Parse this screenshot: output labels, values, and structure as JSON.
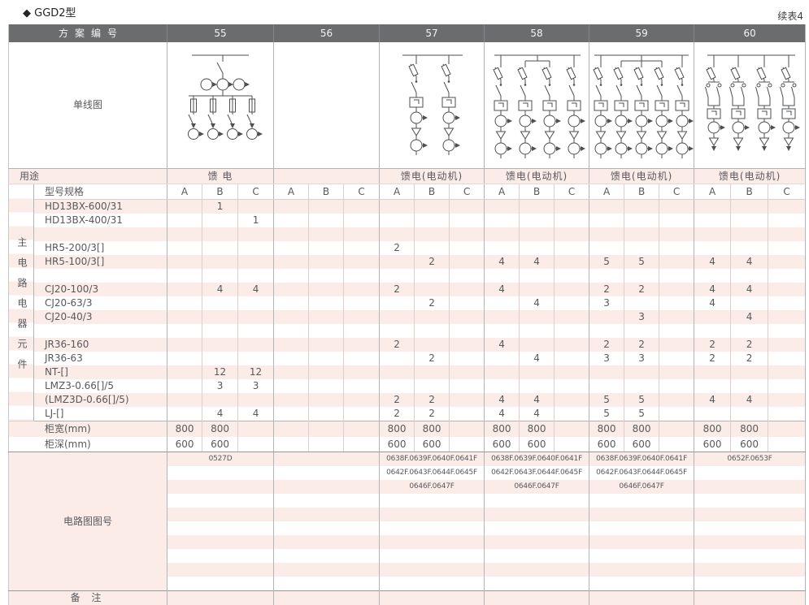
{
  "page": {
    "title": "◆ GGD2型",
    "continuation": "续表4"
  },
  "header": {
    "scheme_label": "方案编号",
    "schemes": [
      "55",
      "56",
      "57",
      "58",
      "59",
      "60"
    ]
  },
  "diagram_row": {
    "label": "单线图",
    "cells": [
      {
        "scheme": "55",
        "type": "feeder-4-branch"
      },
      {
        "scheme": "56",
        "type": "empty"
      },
      {
        "scheme": "57",
        "type": "motor-feeder-2-branch"
      },
      {
        "scheme": "58",
        "type": "motor-feeder-4-branch"
      },
      {
        "scheme": "59",
        "type": "motor-feeder-5-branch"
      },
      {
        "scheme": "60",
        "type": "reversing-motor-feeder-4-branch"
      }
    ]
  },
  "usage_row": {
    "label": "用途",
    "values": [
      "馈 电",
      "",
      "馈电(电动机)",
      "馈电(电动机)",
      "馈电(电动机)",
      "馈电(电动机)"
    ]
  },
  "spec_header": {
    "label": "型号规格",
    "sub_columns": [
      "A",
      "B",
      "C"
    ]
  },
  "side_label": "主电路电器元件",
  "components": [
    {
      "label": "HD13BX-600/31",
      "values": [
        "",
        "1",
        "",
        "",
        "",
        "",
        "",
        "",
        "",
        "",
        "",
        "",
        "",
        "",
        "",
        "",
        "",
        ""
      ]
    },
    {
      "label": "HD13BX-400/31",
      "values": [
        "",
        "",
        "1",
        "",
        "",
        "",
        "",
        "",
        "",
        "",
        "",
        "",
        "",
        "",
        "",
        "",
        "",
        ""
      ]
    },
    {
      "label": "",
      "values": [
        "",
        "",
        "",
        "",
        "",
        "",
        "",
        "",
        "",
        "",
        "",
        "",
        "",
        "",
        "",
        "",
        "",
        ""
      ]
    },
    {
      "label": "HR5-200/3[]",
      "values": [
        "",
        "",
        "",
        "",
        "",
        "",
        "2",
        "",
        "",
        "",
        "",
        "",
        "",
        "",
        "",
        "",
        "",
        ""
      ]
    },
    {
      "label": "HR5-100/3[]",
      "values": [
        "",
        "",
        "",
        "",
        "",
        "",
        "",
        "2",
        "",
        "4",
        "4",
        "",
        "5",
        "5",
        "",
        "4",
        "4",
        ""
      ]
    },
    {
      "label": "",
      "values": [
        "",
        "",
        "",
        "",
        "",
        "",
        "",
        "",
        "",
        "",
        "",
        "",
        "",
        "",
        "",
        "",
        "",
        ""
      ]
    },
    {
      "label": "CJ20-100/3",
      "values": [
        "",
        "4",
        "4",
        "",
        "",
        "",
        "2",
        "",
        "",
        "4",
        "",
        "",
        "2",
        "2",
        "",
        "4",
        "4",
        ""
      ]
    },
    {
      "label": "CJ20-63/3",
      "values": [
        "",
        "",
        "",
        "",
        "",
        "",
        "",
        "2",
        "",
        "",
        "4",
        "",
        "3",
        "",
        "",
        "4",
        "",
        ""
      ]
    },
    {
      "label": "CJ20-40/3",
      "values": [
        "",
        "",
        "",
        "",
        "",
        "",
        "",
        "",
        "",
        "",
        "",
        "",
        "",
        "3",
        "",
        "",
        "4",
        ""
      ]
    },
    {
      "label": "",
      "values": [
        "",
        "",
        "",
        "",
        "",
        "",
        "",
        "",
        "",
        "",
        "",
        "",
        "",
        "",
        "",
        "",
        "",
        ""
      ]
    },
    {
      "label": "JR36-160",
      "values": [
        "",
        "",
        "",
        "",
        "",
        "",
        "2",
        "",
        "",
        "4",
        "",
        "",
        "2",
        "2",
        "",
        "2",
        "2",
        ""
      ]
    },
    {
      "label": "JR36-63",
      "values": [
        "",
        "",
        "",
        "",
        "",
        "",
        "",
        "2",
        "",
        "",
        "4",
        "",
        "3",
        "3",
        "",
        "2",
        "2",
        ""
      ]
    },
    {
      "label": "NT-[]",
      "values": [
        "",
        "12",
        "12",
        "",
        "",
        "",
        "",
        "",
        "",
        "",
        "",
        "",
        "",
        "",
        "",
        "",
        "",
        ""
      ]
    },
    {
      "label": "LMZ3-0.66[]/5",
      "values": [
        "",
        "3",
        "3",
        "",
        "",
        "",
        "",
        "",
        "",
        "",
        "",
        "",
        "",
        "",
        "",
        "",
        "",
        ""
      ]
    },
    {
      "label": "(LMZ3D-0.66[]/5)",
      "values": [
        "",
        "",
        "",
        "",
        "",
        "",
        "2",
        "2",
        "",
        "4",
        "4",
        "",
        "5",
        "5",
        "",
        "4",
        "4",
        ""
      ]
    },
    {
      "label": "LJ-[]",
      "values": [
        "",
        "4",
        "4",
        "",
        "",
        "",
        "2",
        "2",
        "",
        "4",
        "4",
        "",
        "5",
        "5",
        "",
        "",
        "",
        ""
      ]
    }
  ],
  "cabinet_width": {
    "label": "柜宽(mm)",
    "values": [
      "800",
      "800",
      "",
      "",
      "",
      "",
      "800",
      "800",
      "",
      "800",
      "800",
      "",
      "800",
      "800",
      "",
      "800",
      "800",
      ""
    ]
  },
  "cabinet_depth": {
    "label": "柜深(mm)",
    "values": [
      "600",
      "600",
      "",
      "",
      "",
      "",
      "600",
      "600",
      "",
      "600",
      "600",
      "",
      "600",
      "600",
      "",
      "600",
      "600",
      ""
    ]
  },
  "circuit_numbers": {
    "label": "电路图图号",
    "rows": [
      [
        "0527D",
        "",
        "0638F.0639F.0640F.0641F",
        "0638F.0639F.0640F.0641F",
        "0638F.0639F.0640F.0641F",
        "0652F.0653F"
      ],
      [
        "",
        "",
        "0642F.0643F.0644F.0645F",
        "0642F.0643F.0644F.0645F",
        "0642F.0643F.0644F.0645F",
        ""
      ],
      [
        "",
        "",
        "0646F.0647F",
        "0646F.0647F",
        "0646F.0647F",
        ""
      ],
      [
        "",
        "",
        "",
        "",
        "",
        ""
      ],
      [
        "",
        "",
        "",
        "",
        "",
        ""
      ],
      [
        "",
        "",
        "",
        "",
        "",
        ""
      ],
      [
        "",
        "",
        "",
        "",
        "",
        ""
      ],
      [
        "",
        "",
        "",
        "",
        "",
        ""
      ],
      [
        "",
        "",
        "",
        "",
        "",
        ""
      ],
      [
        "",
        "",
        "",
        "",
        "",
        ""
      ]
    ]
  },
  "remarks_row": {
    "label": "备 注",
    "values": [
      "",
      "",
      "",
      "",
      "",
      ""
    ]
  },
  "colors": {
    "header_bg": "#6b6c6e",
    "stripe_pink": "#fcece8",
    "grid": "#b3b4b6",
    "text": "#58595c"
  }
}
